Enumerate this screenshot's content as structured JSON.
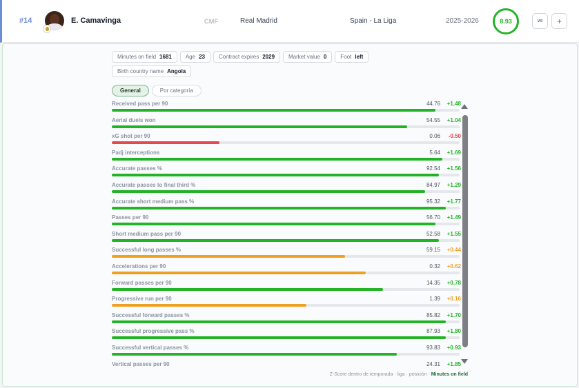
{
  "player": {
    "rank": "#14",
    "name": "E. Camavinga",
    "position": "CMF",
    "team": "Real Madrid",
    "league": "Spain - La Liga",
    "season": "2025-2026",
    "rating": "8.93",
    "rating_color": "#22b326"
  },
  "actions": {
    "vs_label": "vs",
    "add_label": "+"
  },
  "chips": [
    {
      "label": "Minutes on field",
      "value": "1681"
    },
    {
      "label": "Age",
      "value": "23"
    },
    {
      "label": "Contract expires",
      "value": "2029"
    },
    {
      "label": "Market value",
      "value": "0"
    },
    {
      "label": "Foot",
      "value": "left"
    },
    {
      "label": "Birth country name",
      "value": "Angola"
    }
  ],
  "tabs": [
    {
      "label": "General",
      "active": true
    },
    {
      "label": "Por categoría",
      "active": false
    }
  ],
  "colors": {
    "good": "#22b326",
    "mid": "#f0a020",
    "bad": "#e5484d"
  },
  "metrics": [
    {
      "label": "Received pass per 90",
      "value": "44.76",
      "delta": "+1.48",
      "fill": 0.93,
      "level": "good"
    },
    {
      "label": "Aerial duels won",
      "value": "54.55",
      "delta": "+1.04",
      "fill": 0.85,
      "level": "good"
    },
    {
      "label": "xG shot per 90",
      "value": "0.06",
      "delta": "-0.50",
      "fill": 0.31,
      "level": "bad"
    },
    {
      "label": "Padj interceptions",
      "value": "5.64",
      "delta": "+1.69",
      "fill": 0.95,
      "level": "good"
    },
    {
      "label": "Accurate passes %",
      "value": "92.54",
      "delta": "+1.56",
      "fill": 0.94,
      "level": "good"
    },
    {
      "label": "Accurate passes to final third %",
      "value": "84.97",
      "delta": "+1.29",
      "fill": 0.9,
      "level": "good"
    },
    {
      "label": "Accurate short medium pass %",
      "value": "95.32",
      "delta": "+1.77",
      "fill": 0.96,
      "level": "good"
    },
    {
      "label": "Passes per 90",
      "value": "56.70",
      "delta": "+1.49",
      "fill": 0.93,
      "level": "good"
    },
    {
      "label": "Short medium pass per 90",
      "value": "52.58",
      "delta": "+1.55",
      "fill": 0.94,
      "level": "good"
    },
    {
      "label": "Successful long passes %",
      "value": "59.15",
      "delta": "+0.44",
      "fill": 0.67,
      "level": "mid"
    },
    {
      "label": "Accelerations per 90",
      "value": "0.32",
      "delta": "+0.62",
      "fill": 0.73,
      "level": "mid"
    },
    {
      "label": "Forward passes per 90",
      "value": "14.35",
      "delta": "+0.78",
      "fill": 0.78,
      "level": "good"
    },
    {
      "label": "Progressive run per 90",
      "value": "1.39",
      "delta": "+0.16",
      "fill": 0.56,
      "level": "mid"
    },
    {
      "label": "Successful forward passes %",
      "value": "85.82",
      "delta": "+1.70",
      "fill": 0.96,
      "level": "good"
    },
    {
      "label": "Successful progressive pass %",
      "value": "87.93",
      "delta": "+1.80",
      "fill": 0.96,
      "level": "good"
    },
    {
      "label": "Successful vertical passes %",
      "value": "93.83",
      "delta": "+0.93",
      "fill": 0.82,
      "level": "good"
    },
    {
      "label": "Vertical passes per 90",
      "value": "24.31",
      "delta": "+1.85",
      "fill": 0.97,
      "level": "good"
    }
  ],
  "footnote": {
    "text": "Z-Score dentro de temporada · liga · posición · ",
    "highlight": "Minutes on field"
  }
}
